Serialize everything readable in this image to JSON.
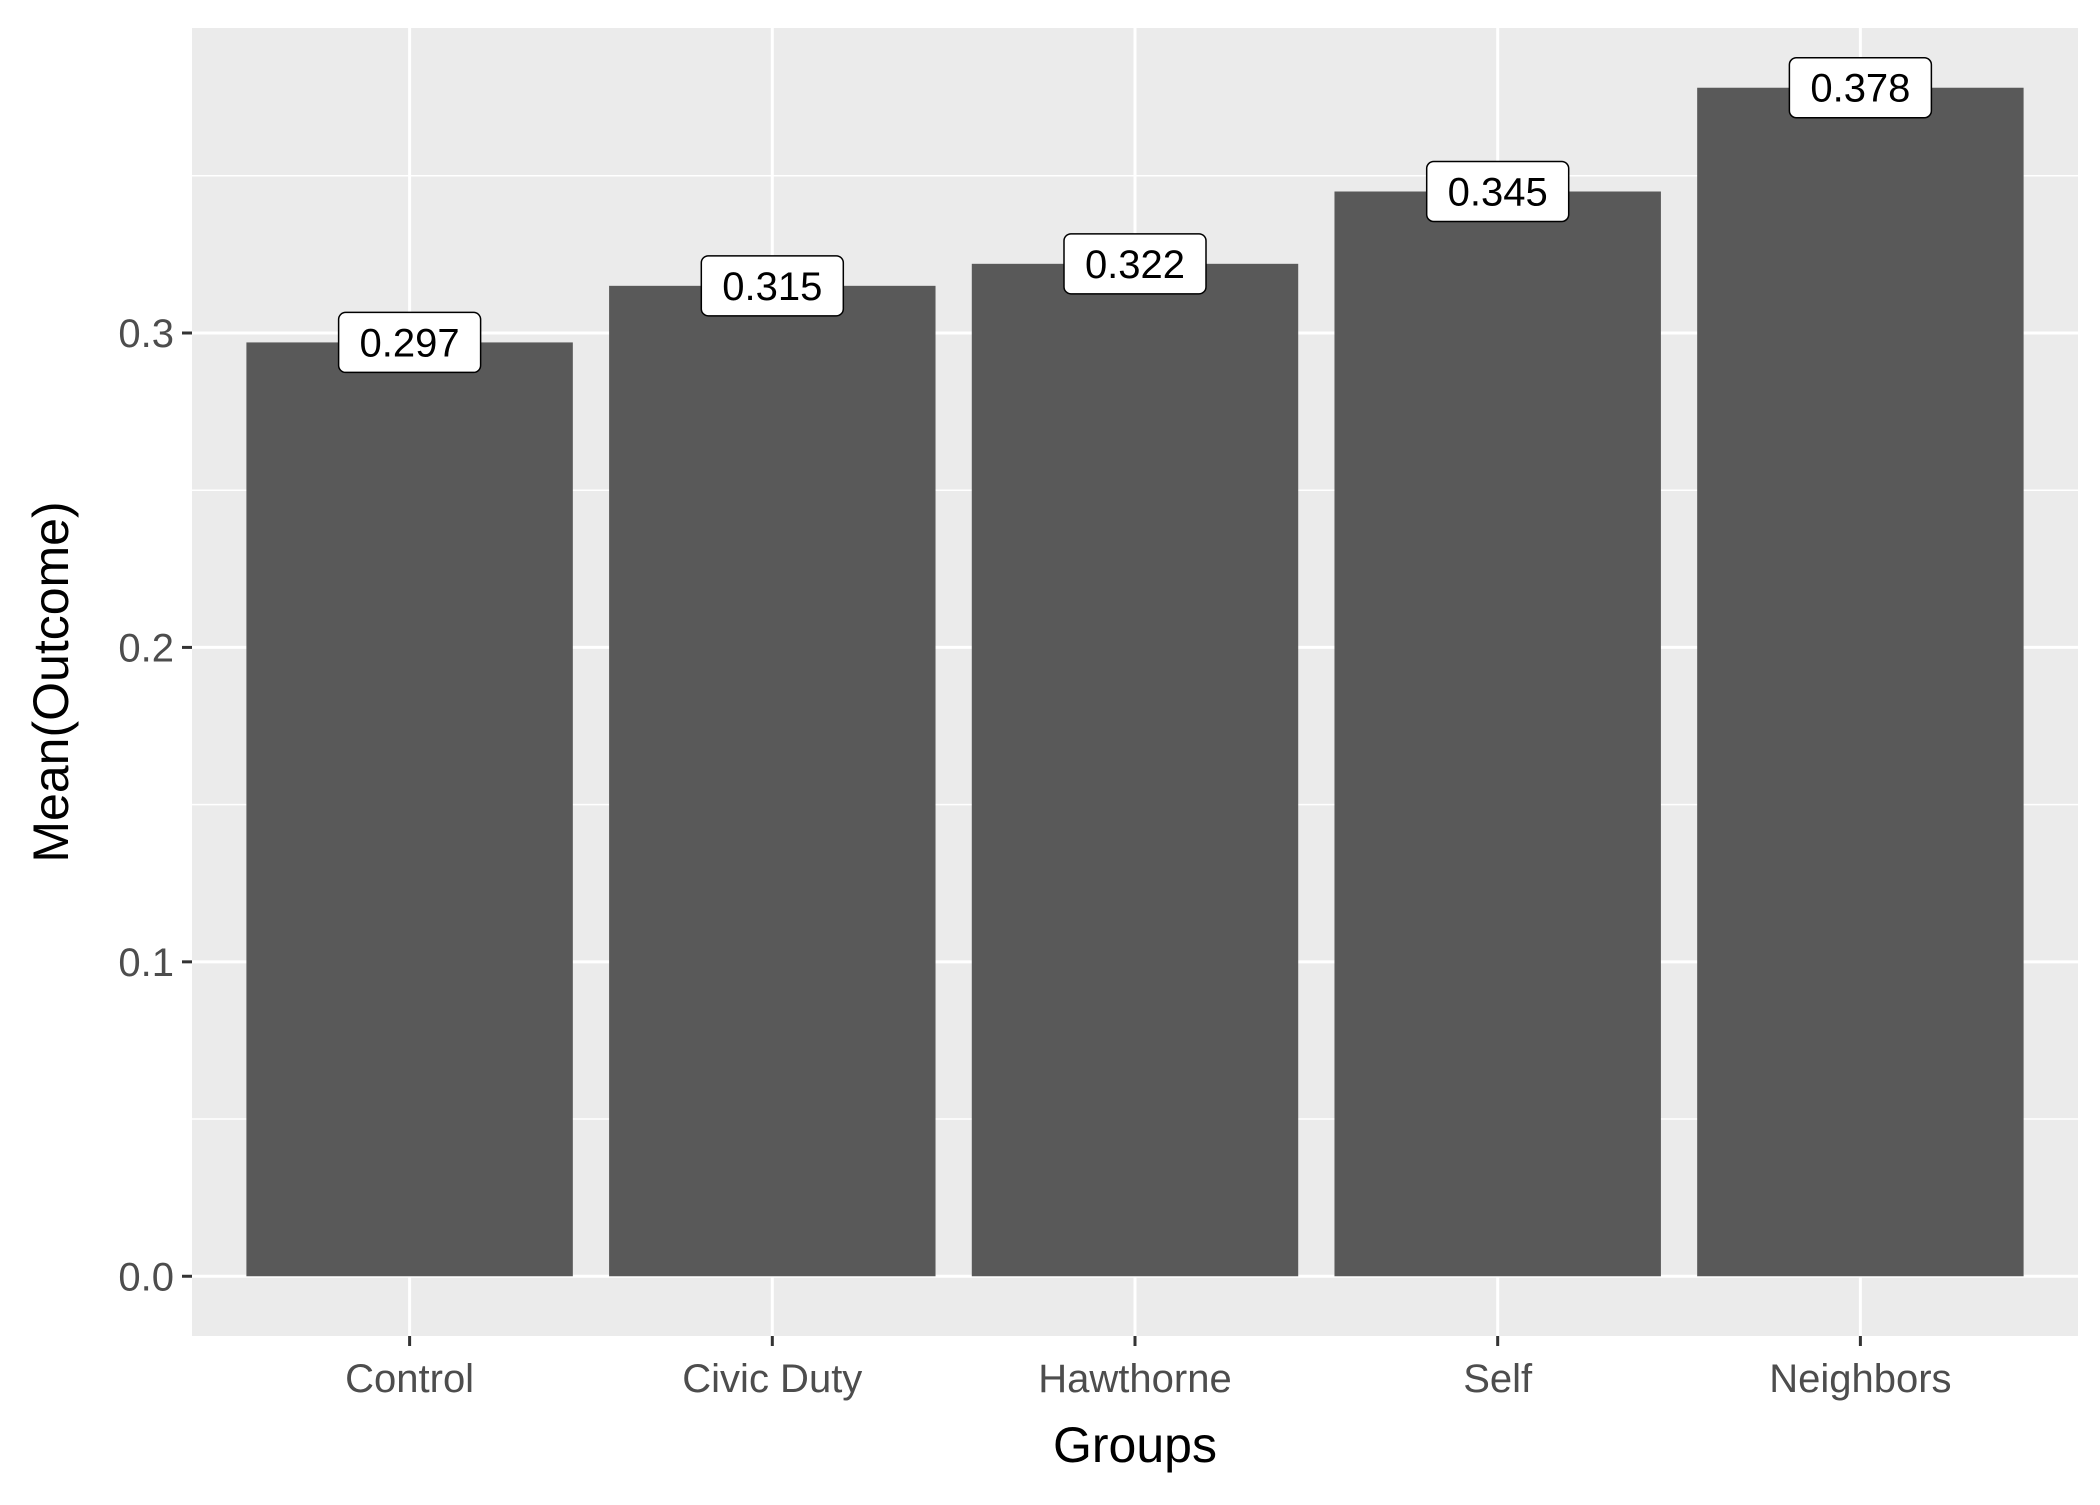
{
  "chart_data": {
    "type": "bar",
    "title": "",
    "xlabel": "Groups",
    "ylabel": "Mean(Outcome)",
    "categories": [
      "Control",
      "Civic Duty",
      "Hawthorne",
      "Self",
      "Neighbors"
    ],
    "values": [
      0.297,
      0.315,
      0.322,
      0.345,
      0.378
    ],
    "data_labels": [
      "0.297",
      "0.315",
      "0.322",
      "0.345",
      "0.378"
    ],
    "ylim": [
      -0.019,
      0.397
    ],
    "yticks": [
      0.0,
      0.1,
      0.2,
      0.3
    ],
    "ytick_labels": [
      "0.0",
      "0.1",
      "0.2",
      "0.3"
    ],
    "grid": true,
    "legend": "none",
    "colors": {
      "bar": "#595959",
      "panel_background": "#ebebeb",
      "grid_line": "#ffffff",
      "label_box_fill": "#ffffff",
      "label_box_border": "#000000"
    }
  }
}
